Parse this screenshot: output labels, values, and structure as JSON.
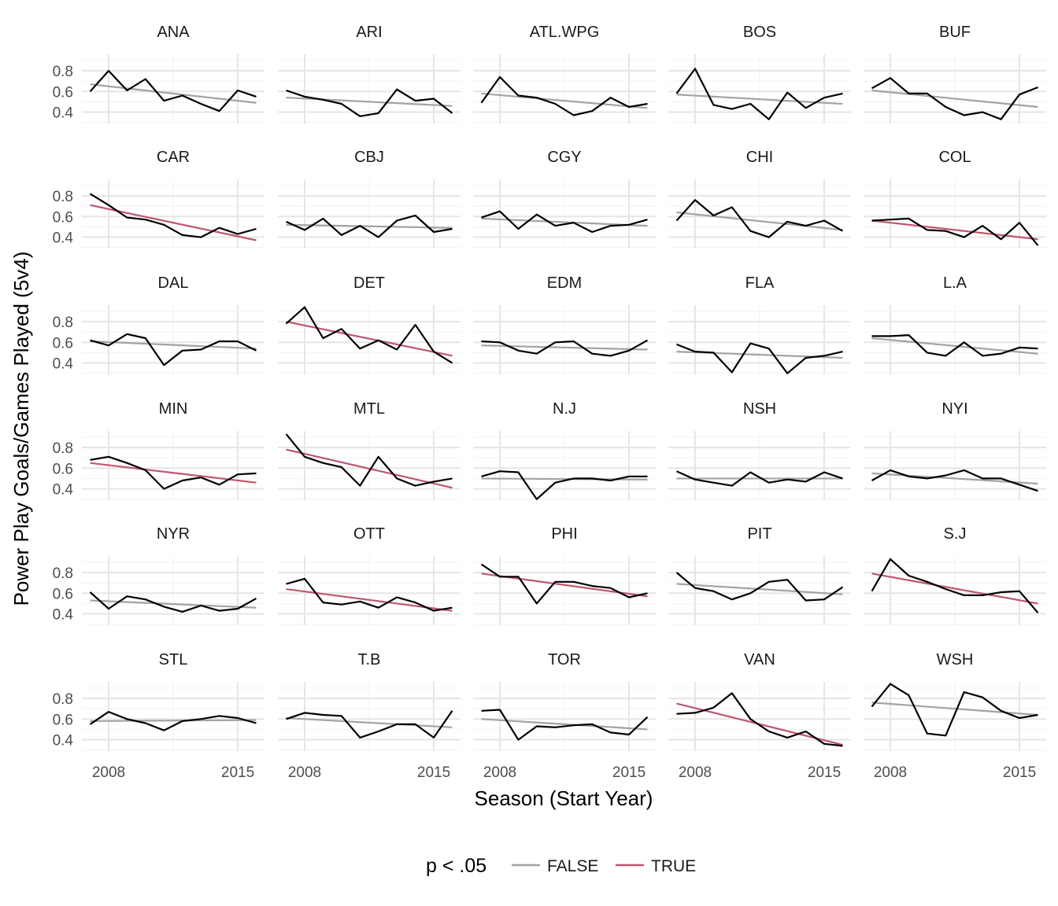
{
  "chart_data": {
    "type": "line",
    "xlabel": "Season (Start Year)",
    "ylabel": "Power Play Goals/Games Played (5v4)",
    "x": [
      2007,
      2008,
      2009,
      2010,
      2011,
      2012,
      2013,
      2014,
      2015,
      2016
    ],
    "x_ticks": [
      2008,
      2015
    ],
    "y_ticks": [
      0.4,
      0.6,
      0.8
    ],
    "ylim": [
      0.29,
      0.96
    ],
    "xlim": [
      2006.55,
      2016.45
    ],
    "grid": true,
    "legend": {
      "title": "p < .05",
      "position": "bottom",
      "entries": [
        {
          "label": "FALSE",
          "color": "#a3a3a3"
        },
        {
          "label": "TRUE",
          "color": "#c0566f"
        }
      ]
    },
    "colors": {
      "series": "#000000",
      "trend_false": "#a3a3a3",
      "trend_true": "#c0566f"
    },
    "panels": [
      {
        "team": "ANA",
        "values": [
          0.6,
          0.8,
          0.61,
          0.72,
          0.51,
          0.56,
          0.48,
          0.41,
          0.61,
          0.55
        ],
        "trend": [
          0.67,
          0.49
        ],
        "significant": false
      },
      {
        "team": "ARI",
        "values": [
          0.61,
          0.55,
          0.52,
          0.48,
          0.36,
          0.39,
          0.62,
          0.51,
          0.53,
          0.39
        ],
        "trend": [
          0.54,
          0.46
        ],
        "significant": false
      },
      {
        "team": "ATL.WPG",
        "values": [
          0.49,
          0.74,
          0.56,
          0.54,
          0.48,
          0.37,
          0.41,
          0.54,
          0.45,
          0.48
        ],
        "trend": [
          0.58,
          0.44
        ],
        "significant": false
      },
      {
        "team": "BOS",
        "values": [
          0.58,
          0.82,
          0.47,
          0.43,
          0.48,
          0.33,
          0.59,
          0.44,
          0.54,
          0.58
        ],
        "trend": [
          0.57,
          0.48
        ],
        "significant": false
      },
      {
        "team": "BUF",
        "values": [
          0.63,
          0.73,
          0.58,
          0.58,
          0.45,
          0.37,
          0.4,
          0.33,
          0.57,
          0.64
        ],
        "trend": [
          0.61,
          0.45
        ],
        "significant": false
      },
      {
        "team": "CAR",
        "values": [
          0.82,
          0.71,
          0.59,
          0.57,
          0.52,
          0.42,
          0.4,
          0.49,
          0.43,
          0.48
        ],
        "trend": [
          0.71,
          0.37
        ],
        "significant": true
      },
      {
        "team": "CBJ",
        "values": [
          0.55,
          0.47,
          0.58,
          0.42,
          0.51,
          0.4,
          0.56,
          0.61,
          0.45,
          0.48
        ],
        "trend": [
          0.52,
          0.49
        ],
        "significant": false
      },
      {
        "team": "CGY",
        "values": [
          0.59,
          0.65,
          0.48,
          0.62,
          0.51,
          0.54,
          0.45,
          0.51,
          0.52,
          0.57
        ],
        "trend": [
          0.58,
          0.51
        ],
        "significant": false
      },
      {
        "team": "CHI",
        "values": [
          0.56,
          0.76,
          0.61,
          0.69,
          0.46,
          0.4,
          0.55,
          0.51,
          0.56,
          0.46
        ],
        "trend": [
          0.64,
          0.47
        ],
        "significant": false
      },
      {
        "team": "COL",
        "values": [
          0.56,
          0.57,
          0.58,
          0.47,
          0.46,
          0.4,
          0.51,
          0.38,
          0.54,
          0.32
        ],
        "trend": [
          0.56,
          0.38
        ],
        "significant": true
      },
      {
        "team": "DAL",
        "values": [
          0.62,
          0.57,
          0.68,
          0.64,
          0.38,
          0.52,
          0.53,
          0.61,
          0.61,
          0.52
        ],
        "trend": [
          0.61,
          0.54
        ],
        "significant": false
      },
      {
        "team": "DET",
        "values": [
          0.78,
          0.94,
          0.64,
          0.73,
          0.54,
          0.62,
          0.53,
          0.77,
          0.51,
          0.4
        ],
        "trend": [
          0.8,
          0.47
        ],
        "significant": true
      },
      {
        "team": "EDM",
        "values": [
          0.61,
          0.6,
          0.52,
          0.49,
          0.6,
          0.61,
          0.49,
          0.47,
          0.52,
          0.62
        ],
        "trend": [
          0.57,
          0.53
        ],
        "significant": false
      },
      {
        "team": "FLA",
        "values": [
          0.58,
          0.51,
          0.5,
          0.31,
          0.59,
          0.54,
          0.3,
          0.45,
          0.47,
          0.51
        ],
        "trend": [
          0.51,
          0.45
        ],
        "significant": false
      },
      {
        "team": "L.A",
        "values": [
          0.66,
          0.66,
          0.67,
          0.5,
          0.47,
          0.6,
          0.47,
          0.49,
          0.55,
          0.54
        ],
        "trend": [
          0.64,
          0.49
        ],
        "significant": false
      },
      {
        "team": "MIN",
        "values": [
          0.68,
          0.71,
          0.65,
          0.58,
          0.4,
          0.48,
          0.51,
          0.44,
          0.54,
          0.55
        ],
        "trend": [
          0.65,
          0.46
        ],
        "significant": true
      },
      {
        "team": "MTL",
        "values": [
          0.93,
          0.71,
          0.65,
          0.61,
          0.43,
          0.71,
          0.5,
          0.43,
          0.47,
          0.5
        ],
        "trend": [
          0.78,
          0.41
        ],
        "significant": true
      },
      {
        "team": "N.J",
        "values": [
          0.52,
          0.57,
          0.56,
          0.3,
          0.46,
          0.5,
          0.5,
          0.48,
          0.52,
          0.52
        ],
        "trend": [
          0.5,
          0.49
        ],
        "significant": false
      },
      {
        "team": "NSH",
        "values": [
          0.57,
          0.49,
          0.46,
          0.43,
          0.56,
          0.46,
          0.49,
          0.47,
          0.56,
          0.5
        ],
        "trend": [
          0.5,
          0.5
        ],
        "significant": false
      },
      {
        "team": "NYI",
        "values": [
          0.48,
          0.58,
          0.52,
          0.5,
          0.53,
          0.58,
          0.5,
          0.5,
          0.44,
          0.38
        ],
        "trend": [
          0.55,
          0.45
        ],
        "significant": false
      },
      {
        "team": "NYR",
        "values": [
          0.61,
          0.45,
          0.57,
          0.54,
          0.47,
          0.42,
          0.48,
          0.43,
          0.45,
          0.55
        ],
        "trend": [
          0.53,
          0.46
        ],
        "significant": false
      },
      {
        "team": "OTT",
        "values": [
          0.69,
          0.74,
          0.51,
          0.49,
          0.52,
          0.46,
          0.56,
          0.51,
          0.43,
          0.46
        ],
        "trend": [
          0.64,
          0.43
        ],
        "significant": true
      },
      {
        "team": "PHI",
        "values": [
          0.88,
          0.76,
          0.76,
          0.5,
          0.71,
          0.71,
          0.67,
          0.65,
          0.56,
          0.6
        ],
        "trend": [
          0.79,
          0.57
        ],
        "significant": true
      },
      {
        "team": "PIT",
        "values": [
          0.8,
          0.65,
          0.62,
          0.54,
          0.6,
          0.71,
          0.73,
          0.53,
          0.54,
          0.66
        ],
        "trend": [
          0.69,
          0.59
        ],
        "significant": false
      },
      {
        "team": "S.J",
        "values": [
          0.62,
          0.93,
          0.77,
          0.71,
          0.64,
          0.58,
          0.58,
          0.61,
          0.62,
          0.41
        ],
        "trend": [
          0.79,
          0.5
        ],
        "significant": true
      },
      {
        "team": "STL",
        "values": [
          0.55,
          0.67,
          0.6,
          0.56,
          0.49,
          0.58,
          0.6,
          0.63,
          0.61,
          0.56
        ],
        "trend": [
          0.58,
          0.59
        ],
        "significant": false
      },
      {
        "team": "T.B",
        "values": [
          0.6,
          0.66,
          0.64,
          0.63,
          0.42,
          0.48,
          0.55,
          0.55,
          0.42,
          0.68
        ],
        "trend": [
          0.61,
          0.52
        ],
        "significant": false
      },
      {
        "team": "TOR",
        "values": [
          0.68,
          0.69,
          0.4,
          0.53,
          0.52,
          0.54,
          0.55,
          0.47,
          0.45,
          0.62
        ],
        "trend": [
          0.6,
          0.5
        ],
        "significant": false
      },
      {
        "team": "VAN",
        "values": [
          0.65,
          0.66,
          0.71,
          0.85,
          0.6,
          0.48,
          0.42,
          0.48,
          0.36,
          0.34
        ],
        "trend": [
          0.75,
          0.35
        ],
        "significant": true
      },
      {
        "team": "WSH",
        "values": [
          0.72,
          0.94,
          0.83,
          0.46,
          0.44,
          0.86,
          0.81,
          0.68,
          0.61,
          0.64
        ],
        "trend": [
          0.76,
          0.64
        ],
        "significant": false
      }
    ]
  }
}
